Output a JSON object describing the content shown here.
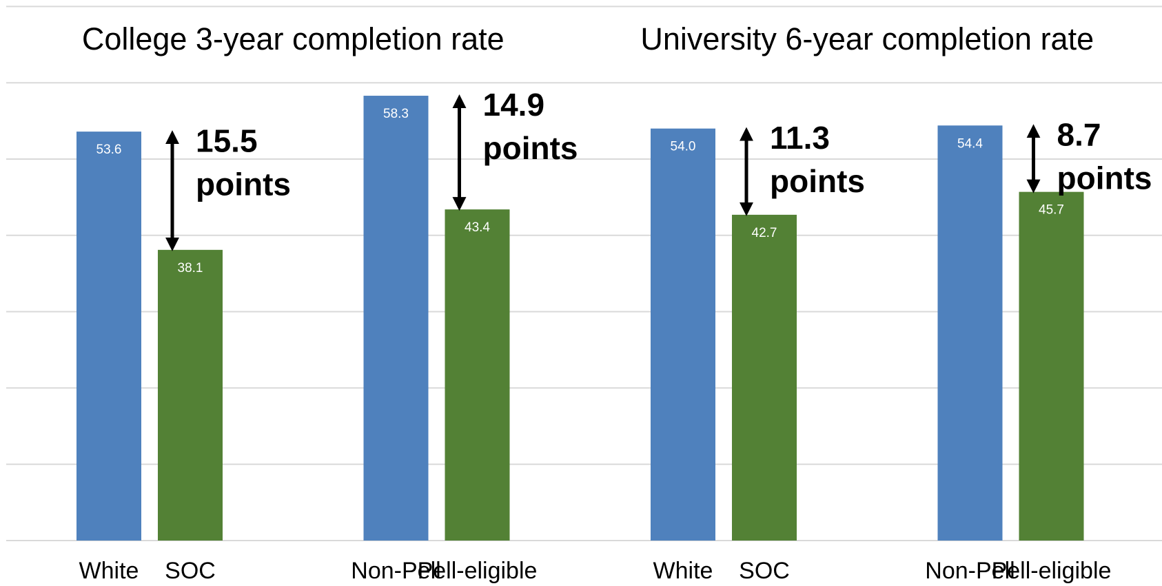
{
  "chart_data": {
    "type": "bar",
    "group_titles": [
      "College 3-year completion rate",
      "University 6-year completion rate"
    ],
    "categories": [
      "White",
      "SOC",
      "Non-Pell",
      "Pell-eligible",
      "White",
      "SOC",
      "Non-Pell",
      "Pell-eligible"
    ],
    "values": [
      53.6,
      38.1,
      58.3,
      43.4,
      54.0,
      42.7,
      54.4,
      45.7
    ],
    "value_labels": [
      "53.6",
      "38.1",
      "58.3",
      "43.4",
      "54.0",
      "42.7",
      "54.4",
      "45.7"
    ],
    "colors": [
      "#4f81bd",
      "#538135",
      "#4f81bd",
      "#538135",
      "#4f81bd",
      "#538135",
      "#4f81bd",
      "#538135"
    ],
    "annotations": [
      [
        "15.5",
        "points"
      ],
      [
        "14.9",
        "points"
      ],
      [
        "11.3",
        "points"
      ],
      [
        "8.7",
        "points"
      ]
    ],
    "ylim": [
      0,
      70
    ],
    "yticks": [
      0,
      10,
      20,
      30,
      40,
      50,
      60,
      70
    ],
    "grid": true
  }
}
